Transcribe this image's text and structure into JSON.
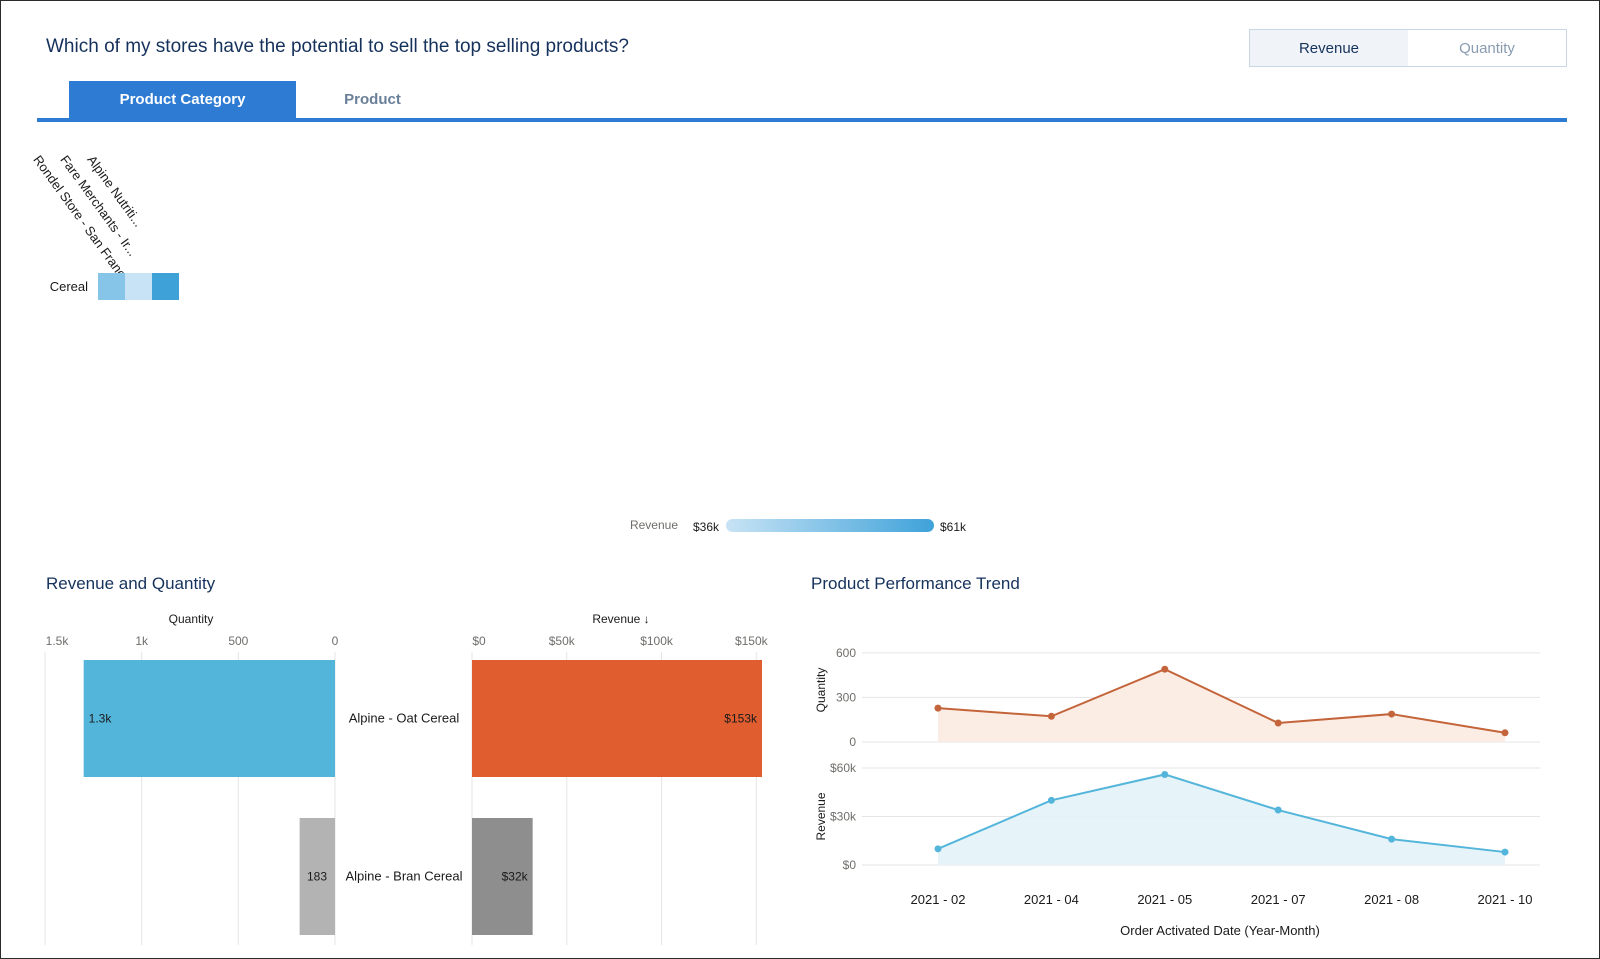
{
  "header": {
    "question": "Which of my stores have the potential to sell the top selling products?",
    "toggle": {
      "revenue_label": "Revenue",
      "quantity_label": "Quantity",
      "selected": "Revenue"
    }
  },
  "tabs": [
    {
      "label": "Product Category",
      "active": true
    },
    {
      "label": "Product",
      "active": false
    }
  ],
  "colors": {
    "accent": "#2e7bd3",
    "quantity_bar": "#54b5db",
    "revenue_bar": "#e05d2f",
    "secondary_bar_light": "#b3b3b3",
    "secondary_bar_dark": "#8e8e8e",
    "quantity_line": "#c4643a",
    "revenue_line": "#54b5db"
  },
  "sections": {
    "revenue_quantity_title": "Revenue and Quantity",
    "trend_title": "Product Performance Trend"
  },
  "chart_data": [
    {
      "type": "heatmap",
      "columns": [
        "Rondel Store - San Franci...",
        "Fare Merchants - Ir...",
        "Alpine Nutriti..."
      ],
      "rows": [
        "Cereal"
      ],
      "values": [
        [
          48,
          36,
          61
        ]
      ],
      "color_scale": {
        "label": "Revenue",
        "min_label": "$36k",
        "max_label": "$61k",
        "min": 36000,
        "max": 61000,
        "min_color": "#c8e3f5",
        "max_color": "#3ea2d9"
      }
    },
    {
      "type": "bar",
      "orientation": "horizontal",
      "categories": [
        "Alpine - Oat Cereal",
        "Alpine - Bran Cereal"
      ],
      "quantity": {
        "title": "Quantity",
        "values": [
          1300,
          183
        ],
        "value_labels": [
          "1.3k",
          "183"
        ],
        "xlim": [
          0,
          1500
        ],
        "ticks": [
          1500,
          1000,
          500,
          0
        ],
        "tick_labels": [
          "1.5k",
          "1k",
          "500",
          "0"
        ]
      },
      "revenue": {
        "title": "Revenue ↓",
        "values": [
          153000,
          32000
        ],
        "value_labels": [
          "$153k",
          "$32k"
        ],
        "xlim": [
          0,
          153000
        ],
        "ticks": [
          0,
          50000,
          100000,
          150000
        ],
        "tick_labels": [
          "$0",
          "$50k",
          "$100k",
          "$150k"
        ]
      }
    },
    {
      "type": "line",
      "x": [
        "2021 - 02",
        "2021 - 04",
        "2021 - 05",
        "2021 - 07",
        "2021 - 08",
        "2021 - 10"
      ],
      "xlabel": "Order Activated Date (Year-Month)",
      "series": [
        {
          "name": "Quantity",
          "values": [
            228,
            173,
            490,
            128,
            188,
            62
          ],
          "ylim": [
            0,
            700
          ],
          "ticks": [
            0,
            300,
            600
          ],
          "tick_labels": [
            "0",
            "300",
            "600"
          ]
        },
        {
          "name": "Revenue",
          "values": [
            10000,
            40000,
            56000,
            34000,
            16000,
            8000
          ],
          "ylim": [
            0,
            60000
          ],
          "ticks": [
            0,
            30000,
            60000
          ],
          "tick_labels": [
            "$0",
            "$30k",
            "$60k"
          ]
        }
      ]
    }
  ]
}
